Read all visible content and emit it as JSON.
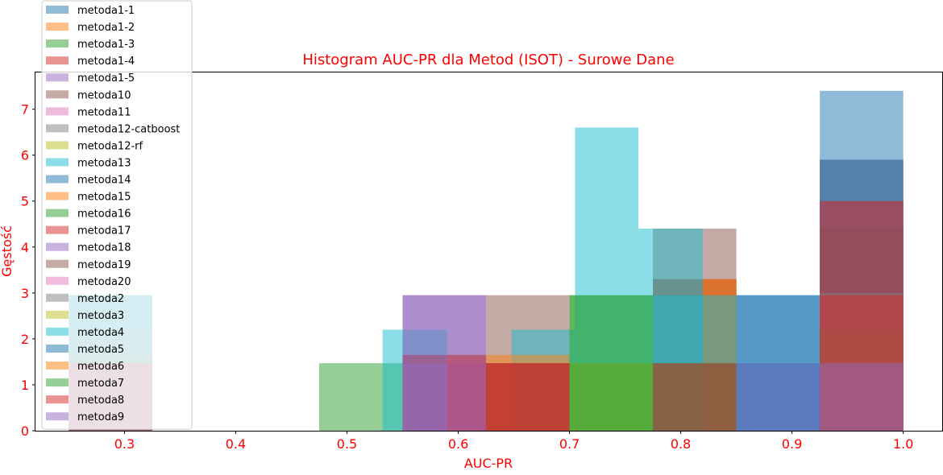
{
  "chart_data": {
    "type": "histogram",
    "title": "Histogram AUC-PR dla Metod (ISOT) - Surowe Dane",
    "xlabel": "AUC-PR",
    "ylabel": "Gęstość",
    "xlim": [
      0.22,
      1.035
    ],
    "ylim": [
      0,
      7.8
    ],
    "xticks": [
      0.3,
      0.4,
      0.5,
      0.6,
      0.7,
      0.8,
      0.9,
      1.0
    ],
    "xtick_labels": [
      "0.3",
      "0.4",
      "0.5",
      "0.6",
      "0.7",
      "0.8",
      "0.9",
      "1.0"
    ],
    "yticks": [
      0,
      1,
      2,
      3,
      4,
      5,
      6,
      7
    ],
    "ytick_labels": [
      "0",
      "1",
      "2",
      "3",
      "4",
      "5",
      "6",
      "7"
    ],
    "legend_position": "top-left",
    "text_color": "#ff0000",
    "alpha": 0.5,
    "series": [
      {
        "name": "metoda1-1",
        "color": "#1f77b4",
        "bins": [
          [
            0.25,
            0.325,
            2.95
          ],
          [
            0.85,
            0.925,
            2.95
          ],
          [
            0.925,
            1.0,
            7.4
          ]
        ]
      },
      {
        "name": "metoda1-2",
        "color": "#ff7f0e",
        "bins": [
          [
            0.25,
            0.325,
            1.65
          ],
          [
            0.55,
            0.625,
            1.65
          ],
          [
            0.775,
            0.85,
            3.3
          ],
          [
            0.925,
            1.0,
            5.0
          ]
        ]
      },
      {
        "name": "metoda1-3",
        "color": "#2ca02c",
        "bins": [
          [
            0.475,
            0.55,
            1.47
          ],
          [
            0.7,
            0.775,
            2.95
          ],
          [
            0.925,
            1.0,
            4.4
          ]
        ]
      },
      {
        "name": "metoda1-4",
        "color": "#d62728",
        "bins": [
          [
            0.25,
            0.325,
            1.65
          ],
          [
            0.55,
            0.625,
            1.65
          ],
          [
            0.775,
            0.85,
            3.3
          ],
          [
            0.925,
            1.0,
            5.0
          ]
        ]
      },
      {
        "name": "metoda1-5",
        "color": "#9467bd",
        "bins": [
          [
            0.25,
            0.325,
            1.47
          ],
          [
            0.55,
            0.625,
            2.95
          ],
          [
            0.625,
            0.7,
            1.47
          ],
          [
            0.775,
            0.85,
            1.47
          ],
          [
            0.85,
            0.925,
            1.47
          ],
          [
            0.925,
            1.0,
            5.9
          ]
        ]
      },
      {
        "name": "metoda10",
        "color": "#8c564b",
        "bins": [
          [
            0.625,
            0.7,
            2.95
          ],
          [
            0.775,
            0.85,
            4.4
          ],
          [
            0.925,
            1.0,
            4.4
          ]
        ]
      },
      {
        "name": "metoda11",
        "color": "#e377c2",
        "bins": [
          [
            0.25,
            0.325,
            1.47
          ],
          [
            0.925,
            1.0,
            2.95
          ]
        ]
      },
      {
        "name": "metoda12-catboost",
        "color": "#7f7f7f",
        "bins": [
          [
            0.25,
            0.325,
            2.95
          ],
          [
            0.925,
            1.0,
            5.9
          ]
        ]
      },
      {
        "name": "metoda12-rf",
        "color": "#bcbd22",
        "bins": [
          [
            0.625,
            0.7,
            1.47
          ],
          [
            0.925,
            1.0,
            2.2
          ]
        ]
      },
      {
        "name": "metoda13",
        "color": "#17becf",
        "bins": [
          [
            0.532,
            0.59,
            2.2
          ],
          [
            0.648,
            0.705,
            2.2
          ],
          [
            0.705,
            0.762,
            6.6
          ],
          [
            0.762,
            0.82,
            4.4
          ]
        ]
      },
      {
        "name": "metoda14",
        "color": "#1f77b4",
        "bins": [
          [
            0.25,
            0.325,
            2.95
          ],
          [
            0.925,
            1.0,
            5.9
          ]
        ]
      },
      {
        "name": "metoda15",
        "color": "#ff7f0e",
        "bins": [
          [
            0.25,
            0.325,
            1.65
          ],
          [
            0.59,
            0.7,
            1.65
          ],
          [
            0.82,
            0.85,
            3.3
          ]
        ]
      },
      {
        "name": "metoda16",
        "color": "#2ca02c",
        "bins": [
          [
            0.7,
            0.775,
            1.47
          ],
          [
            0.925,
            1.0,
            2.2
          ]
        ]
      },
      {
        "name": "metoda17",
        "color": "#d62728",
        "bins": [
          [
            0.55,
            0.625,
            1.65
          ],
          [
            0.625,
            0.7,
            1.47
          ],
          [
            0.925,
            1.0,
            5.0
          ]
        ]
      },
      {
        "name": "metoda18",
        "color": "#9467bd",
        "bins": [
          [
            0.55,
            0.625,
            2.95
          ],
          [
            0.85,
            0.925,
            1.47
          ]
        ]
      },
      {
        "name": "metoda19",
        "color": "#8c564b",
        "bins": [
          [
            0.25,
            0.325,
            1.47
          ],
          [
            0.625,
            0.7,
            1.47
          ],
          [
            0.775,
            0.85,
            1.47
          ]
        ]
      },
      {
        "name": "metoda20",
        "color": "#e377c2",
        "bins": [
          [
            0.25,
            0.325,
            1.47
          ]
        ]
      },
      {
        "name": "metoda2",
        "color": "#7f7f7f",
        "bins": [
          [
            0.25,
            0.325,
            2.2
          ],
          [
            0.925,
            1.0,
            3.0
          ]
        ]
      },
      {
        "name": "metoda3",
        "color": "#bcbd22",
        "bins": [
          [
            0.7,
            0.775,
            1.47
          ]
        ]
      },
      {
        "name": "metoda4",
        "color": "#17becf",
        "bins": [
          [
            0.25,
            0.325,
            2.95
          ],
          [
            0.775,
            0.85,
            2.95
          ]
        ]
      },
      {
        "name": "metoda5",
        "color": "#1f77b4",
        "bins": [
          [
            0.25,
            0.325,
            1.47
          ],
          [
            0.85,
            0.925,
            2.95
          ]
        ]
      },
      {
        "name": "metoda6",
        "color": "#ff7f0e",
        "bins": [
          [
            0.25,
            0.325,
            1.47
          ]
        ]
      },
      {
        "name": "metoda7",
        "color": "#2ca02c",
        "bins": [
          [
            0.7,
            0.775,
            2.95
          ],
          [
            0.775,
            0.85,
            1.47
          ]
        ]
      },
      {
        "name": "metoda8",
        "color": "#d62728",
        "bins": [
          [
            0.25,
            0.325,
            1.47
          ],
          [
            0.59,
            0.7,
            1.47
          ],
          [
            0.775,
            0.85,
            1.47
          ],
          [
            0.925,
            1.0,
            2.95
          ]
        ]
      },
      {
        "name": "metoda9",
        "color": "#9467bd",
        "bins": [
          [
            0.25,
            0.325,
            1.47
          ],
          [
            0.55,
            0.625,
            1.47
          ],
          [
            0.925,
            1.0,
            1.47
          ]
        ]
      }
    ]
  }
}
